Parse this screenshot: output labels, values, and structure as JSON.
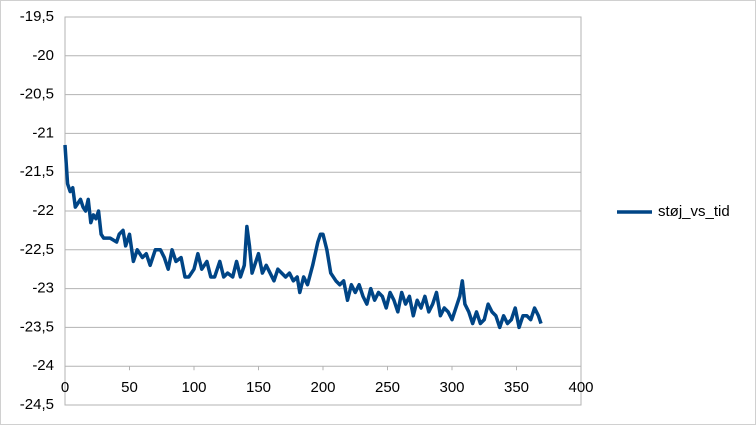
{
  "chart_data": {
    "type": "line",
    "x": [
      0,
      2,
      4,
      6,
      8,
      10,
      12,
      14,
      16,
      18,
      20,
      22,
      24,
      26,
      28,
      30,
      35,
      40,
      42,
      45,
      47,
      50,
      53,
      56,
      60,
      63,
      66,
      70,
      74,
      77,
      80,
      83,
      86,
      90,
      93,
      96,
      100,
      103,
      106,
      110,
      113,
      116,
      120,
      123,
      126,
      130,
      133,
      136,
      139,
      141,
      143,
      145,
      147,
      150,
      153,
      156,
      159,
      162,
      165,
      168,
      171,
      174,
      177,
      180,
      182,
      185,
      188,
      192,
      196,
      198,
      200,
      203,
      206,
      210,
      213,
      216,
      219,
      222,
      225,
      228,
      231,
      234,
      237,
      240,
      243,
      246,
      249,
      252,
      255,
      258,
      261,
      264,
      267,
      270,
      273,
      276,
      279,
      282,
      285,
      288,
      291,
      294,
      297,
      300,
      303,
      306,
      308,
      310,
      313,
      316,
      319,
      322,
      325,
      328,
      331,
      334,
      337,
      340,
      343,
      346,
      349,
      352,
      355,
      358,
      361,
      364,
      367,
      369
    ],
    "series": [
      {
        "name": "støj_vs_tid",
        "color": "#004586",
        "values": [
          -21.15,
          -21.65,
          -21.75,
          -21.7,
          -21.95,
          -21.9,
          -21.85,
          -21.95,
          -22.0,
          -21.85,
          -22.15,
          -22.05,
          -22.1,
          -22.0,
          -22.3,
          -22.35,
          -22.35,
          -22.4,
          -22.3,
          -22.25,
          -22.45,
          -22.3,
          -22.65,
          -22.5,
          -22.6,
          -22.55,
          -22.7,
          -22.5,
          -22.5,
          -22.6,
          -22.75,
          -22.5,
          -22.65,
          -22.6,
          -22.85,
          -22.85,
          -22.75,
          -22.55,
          -22.75,
          -22.65,
          -22.85,
          -22.85,
          -22.65,
          -22.85,
          -22.8,
          -22.85,
          -22.65,
          -22.85,
          -22.7,
          -22.2,
          -22.45,
          -22.8,
          -22.7,
          -22.55,
          -22.8,
          -22.7,
          -22.8,
          -22.9,
          -22.75,
          -22.8,
          -22.85,
          -22.8,
          -22.9,
          -22.85,
          -23.05,
          -22.85,
          -22.95,
          -22.7,
          -22.4,
          -22.3,
          -22.3,
          -22.5,
          -22.8,
          -22.9,
          -22.95,
          -22.9,
          -23.15,
          -22.95,
          -23.05,
          -22.95,
          -23.1,
          -23.2,
          -23.0,
          -23.15,
          -23.05,
          -23.1,
          -23.25,
          -23.05,
          -23.15,
          -23.3,
          -23.05,
          -23.2,
          -23.1,
          -23.35,
          -23.15,
          -23.25,
          -23.1,
          -23.3,
          -23.2,
          -23.05,
          -23.35,
          -23.25,
          -23.3,
          -23.4,
          -23.25,
          -23.1,
          -22.9,
          -23.2,
          -23.3,
          -23.45,
          -23.3,
          -23.45,
          -23.4,
          -23.2,
          -23.3,
          -23.35,
          -23.5,
          -23.35,
          -23.45,
          -23.4,
          -23.25,
          -23.5,
          -23.35,
          -23.35,
          -23.4,
          -23.25,
          -23.35,
          -23.45
        ]
      }
    ],
    "xlim": [
      0,
      400
    ],
    "xticks": [
      0,
      50,
      100,
      150,
      200,
      250,
      300,
      350,
      400
    ],
    "ylim": [
      -24.5,
      -19.5
    ],
    "yticks": [
      {
        "value": -24.5,
        "label": "-24,5"
      },
      -24,
      {
        "value": -23.5,
        "label": "-23,5"
      },
      -23,
      {
        "value": -22.5,
        "label": "-22,5"
      },
      -22,
      {
        "value": -21.5,
        "label": "-21,5"
      },
      -21,
      {
        "value": -20.5,
        "label": "-20,5"
      },
      -20,
      {
        "value": -19.5,
        "label": "-19,5"
      }
    ],
    "grid": true,
    "legend": "right"
  }
}
